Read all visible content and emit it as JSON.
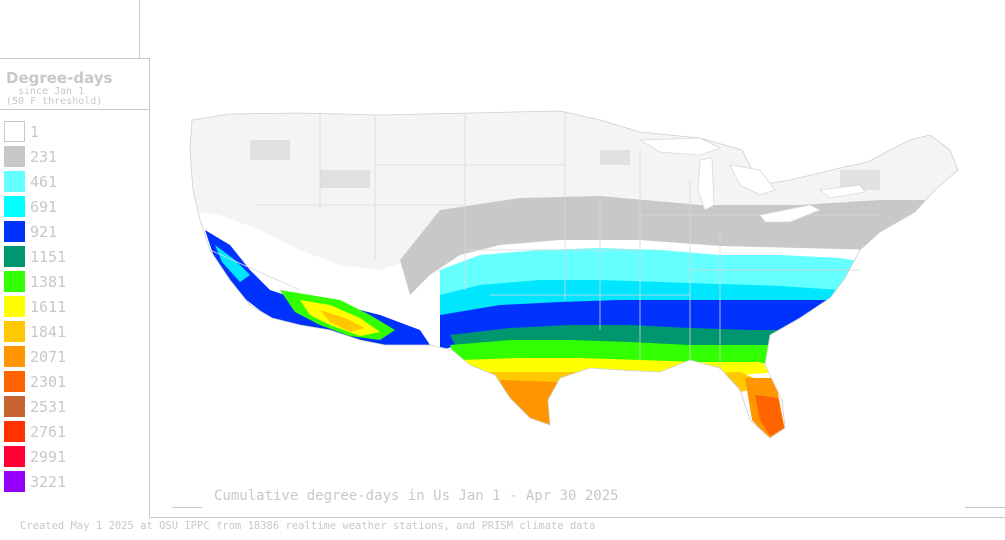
{
  "legend": {
    "title": "Degree-days",
    "subtitle_line1": "since Jan 1",
    "subtitle_line2": "(50 F threshold)",
    "items": [
      {
        "label": "1",
        "color": "#ffffff"
      },
      {
        "label": "231",
        "color": "#c8c8c8"
      },
      {
        "label": "461",
        "color": "#64ffff"
      },
      {
        "label": "691",
        "color": "#00ffff"
      },
      {
        "label": "921",
        "color": "#0032ff"
      },
      {
        "label": "1151",
        "color": "#00966e"
      },
      {
        "label": "1381",
        "color": "#32ff00"
      },
      {
        "label": "1611",
        "color": "#ffff00"
      },
      {
        "label": "1841",
        "color": "#ffc800"
      },
      {
        "label": "2071",
        "color": "#ff9600"
      },
      {
        "label": "2301",
        "color": "#ff6400"
      },
      {
        "label": "2531",
        "color": "#c86432"
      },
      {
        "label": "2761",
        "color": "#ff3200"
      },
      {
        "label": "2991",
        "color": "#ff0032"
      },
      {
        "label": "3221",
        "color": "#9600ff"
      }
    ]
  },
  "map_title": "Cumulative degree-days in Us  Jan 1 - Apr 30 2025",
  "credit": "Created May 1 2025 at OSU IPPC from 18386 realtime weather stations, and PRISM climate data"
}
